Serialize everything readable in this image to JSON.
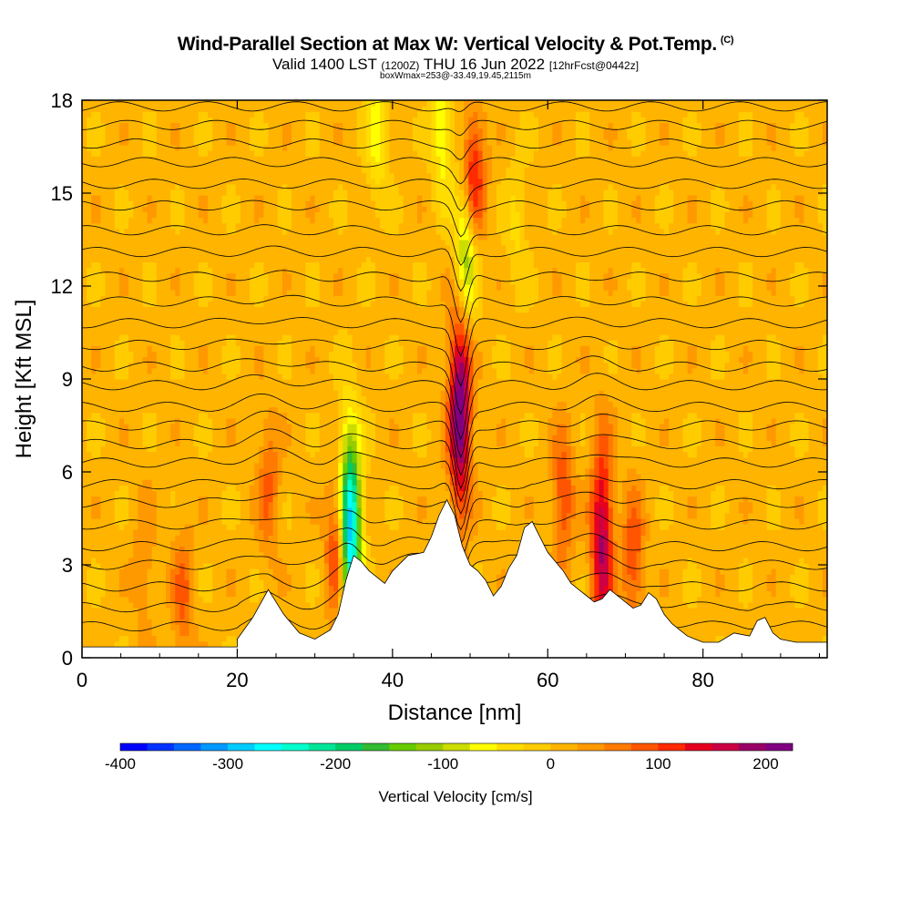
{
  "title": {
    "main": "Wind-Parallel Section at Max W: Vertical Velocity & Pot.Temp.",
    "copyright": "(C)",
    "valid_prefix": "Valid 1400 LST",
    "valid_utc": "(1200Z)",
    "valid_date": "THU 16 Jun 2022",
    "forecast": "[12hrFcst@0442z]",
    "box_info": "boxWmax=253@-33.49,19.45,2115m"
  },
  "chart_data": {
    "type": "heatmap",
    "xlabel": "Distance [nm]",
    "ylabel": "Height [Kft MSL]",
    "xlim": [
      0,
      96
    ],
    "ylim": [
      0,
      18
    ],
    "x_ticks": [
      "0",
      "20",
      "40",
      "60",
      "80"
    ],
    "y_ticks": [
      "0",
      "3",
      "6",
      "9",
      "12",
      "15",
      "18"
    ],
    "colorbar": {
      "label": "Vertical Velocity [cm/s]",
      "range": [
        -400,
        225
      ],
      "tick_labels": [
        "-400",
        "-300",
        "-200",
        "-100",
        "0",
        "100",
        "200"
      ],
      "tick_values": [
        -400,
        -300,
        -200,
        -100,
        0,
        100,
        200
      ],
      "colors": [
        "#0000ff",
        "#0033ff",
        "#0066ff",
        "#0099ff",
        "#00ccff",
        "#00ffff",
        "#00ffcc",
        "#00e699",
        "#00cc66",
        "#33bb33",
        "#66cc00",
        "#99cc00",
        "#ccdd00",
        "#ffff00",
        "#ffdd00",
        "#ffcc00",
        "#ffb400",
        "#ff9900",
        "#ff7a00",
        "#ff5500",
        "#ff2a00",
        "#e60020",
        "#cc0044",
        "#990066",
        "#800080"
      ]
    },
    "terrain": [
      [
        0,
        0.35
      ],
      [
        20,
        0.35
      ],
      [
        20,
        0.6
      ],
      [
        22,
        1.3
      ],
      [
        24,
        2.2
      ],
      [
        26,
        1.4
      ],
      [
        28,
        0.8
      ],
      [
        30,
        0.6
      ],
      [
        32,
        0.9
      ],
      [
        33,
        1.4
      ],
      [
        34,
        2.5
      ],
      [
        35,
        3.3
      ],
      [
        36,
        3.1
      ],
      [
        37,
        2.8
      ],
      [
        38,
        2.6
      ],
      [
        39,
        2.4
      ],
      [
        40,
        2.8
      ],
      [
        42,
        3.3
      ],
      [
        44,
        3.4
      ],
      [
        45,
        3.9
      ],
      [
        46,
        4.6
      ],
      [
        47,
        5.1
      ],
      [
        48,
        4.6
      ],
      [
        49,
        3.6
      ],
      [
        50,
        3.0
      ],
      [
        51,
        2.8
      ],
      [
        52,
        2.5
      ],
      [
        53,
        2.0
      ],
      [
        54,
        2.3
      ],
      [
        55,
        2.9
      ],
      [
        56,
        3.3
      ],
      [
        57,
        4.2
      ],
      [
        58,
        4.4
      ],
      [
        59,
        3.9
      ],
      [
        60,
        3.4
      ],
      [
        61,
        3.1
      ],
      [
        62,
        2.8
      ],
      [
        63,
        2.4
      ],
      [
        64,
        2.2
      ],
      [
        65,
        2.0
      ],
      [
        66,
        1.8
      ],
      [
        67,
        1.9
      ],
      [
        68,
        2.2
      ],
      [
        69,
        2.0
      ],
      [
        70,
        1.8
      ],
      [
        71,
        1.6
      ],
      [
        72,
        1.7
      ],
      [
        73,
        2.1
      ],
      [
        74,
        1.9
      ],
      [
        75,
        1.4
      ],
      [
        76,
        1.1
      ],
      [
        77,
        0.9
      ],
      [
        78,
        0.7
      ],
      [
        80,
        0.5
      ],
      [
        82,
        0.5
      ],
      [
        84,
        0.8
      ],
      [
        86,
        0.7
      ],
      [
        87,
        1.2
      ],
      [
        88,
        1.3
      ],
      [
        89,
        0.8
      ],
      [
        90,
        0.6
      ],
      [
        92,
        0.5
      ],
      [
        94,
        0.5
      ],
      [
        96,
        0.5
      ]
    ],
    "updrafts": [
      {
        "x": 48.7,
        "z": 8.0,
        "w": 220
      },
      {
        "x": 50.5,
        "z": 15.5,
        "w": 130
      },
      {
        "x": 33.0,
        "z": 3.5,
        "w": 140
      },
      {
        "x": 67.0,
        "z": 3.8,
        "w": 170
      },
      {
        "x": 62.0,
        "z": 5.2,
        "w": 90
      },
      {
        "x": 71.0,
        "z": 3.2,
        "w": 90
      },
      {
        "x": 24.0,
        "z": 5.5,
        "w": 70
      },
      {
        "x": 13.0,
        "z": 2.0,
        "w": 70
      },
      {
        "x": 8.0,
        "z": 3.0,
        "w": 40
      }
    ],
    "downdrafts": [
      {
        "x": 34.5,
        "z": 4.0,
        "w": -330
      },
      {
        "x": 49.5,
        "z": 13.0,
        "w": -140
      },
      {
        "x": 46.5,
        "z": 17.0,
        "w": -90
      },
      {
        "x": 38.0,
        "z": 17.0,
        "w": -70
      },
      {
        "x": 56.0,
        "z": 14.0,
        "w": -40
      }
    ],
    "theta_contours_base": [
      0.9,
      1.6,
      2.3,
      3.0,
      3.6,
      4.3,
      5.0,
      5.6,
      6.3,
      6.9,
      7.5,
      8.1,
      8.8,
      9.4,
      10.1,
      10.8,
      11.5,
      12.3,
      13.1,
      13.8,
      14.6,
      15.3,
      16.0,
      16.6,
      17.2,
      17.8
    ]
  }
}
